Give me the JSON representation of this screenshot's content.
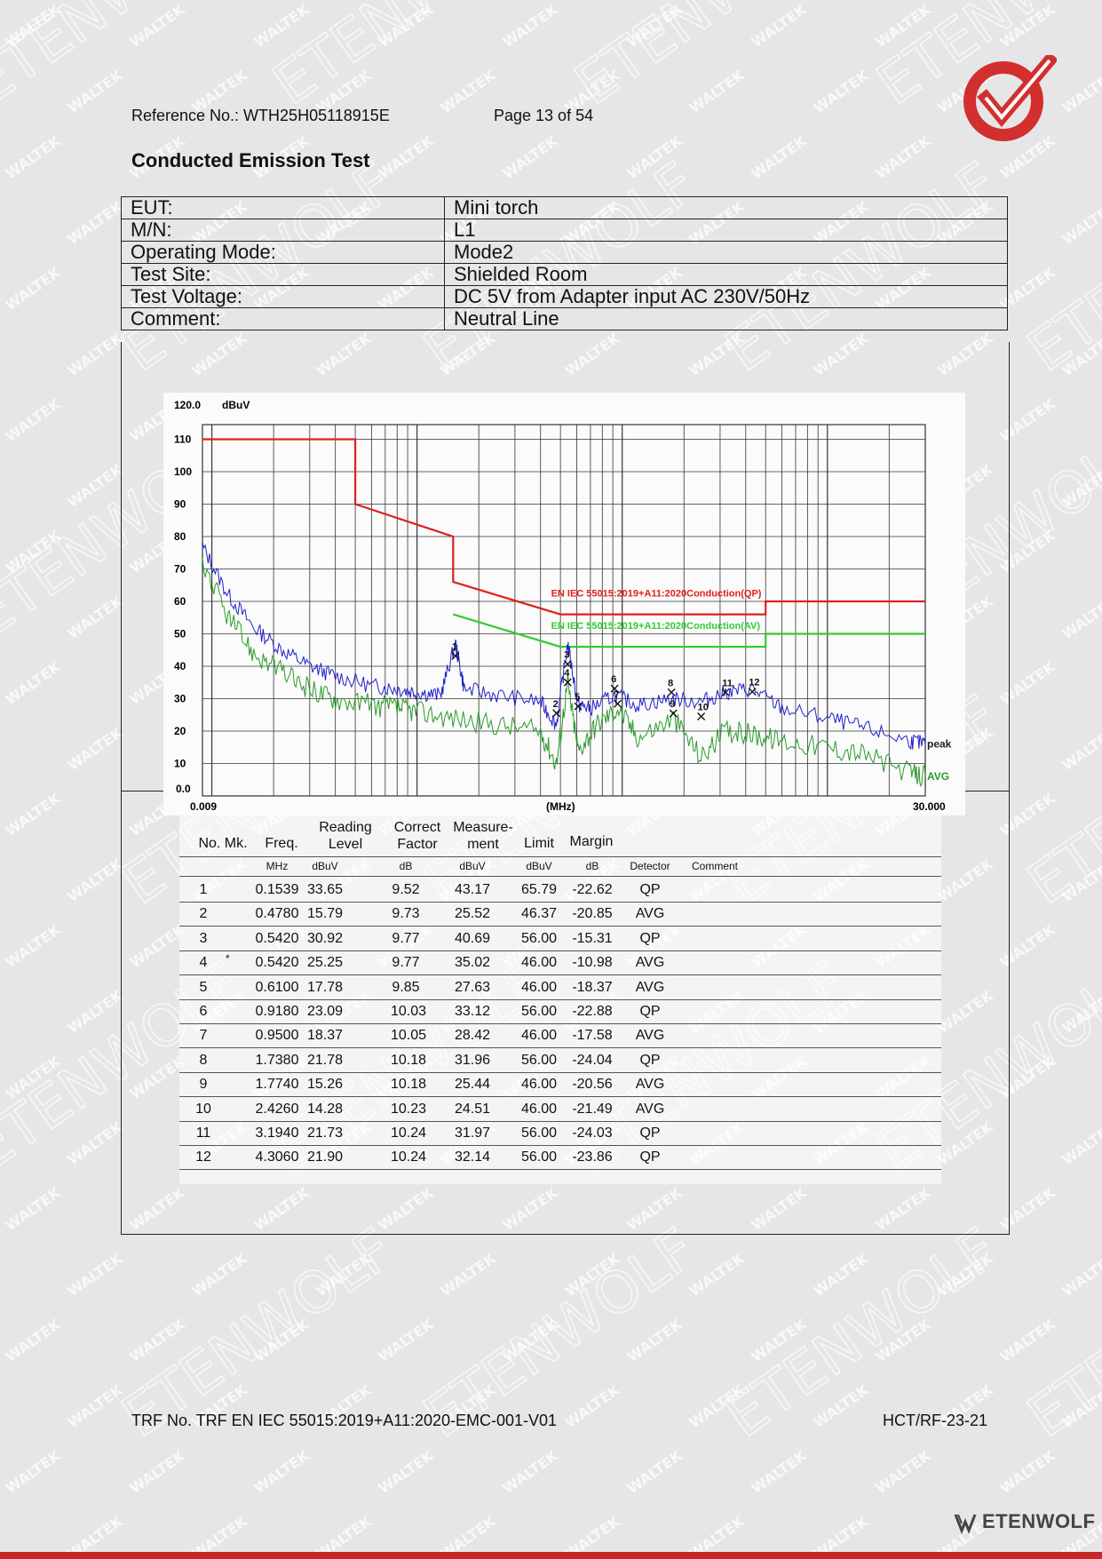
{
  "watermark": {
    "small": "WALTEK",
    "large": "ETENWOLF"
  },
  "header": {
    "reference": "Reference No.: WTH25H05118915E",
    "page": "Page 13 of 54",
    "title": "Conducted Emission Test"
  },
  "info_table": [
    {
      "key": "EUT:",
      "value": "Mini torch"
    },
    {
      "key": "M/N:",
      "value": "L1"
    },
    {
      "key": "Operating Mode:",
      "value": "Mode2"
    },
    {
      "key": "Test Site:",
      "value": "Shielded Room"
    },
    {
      "key": "Test Voltage:",
      "value": "DC 5V from Adapter input AC 230V/50Hz"
    },
    {
      "key": "Comment:",
      "value": "Neutral Line"
    }
  ],
  "chart_data": {
    "type": "line",
    "x_scale": "log",
    "xlim": [
      0.009,
      30.0
    ],
    "ylim": [
      0.0,
      120.0
    ],
    "yunit": "dBuV",
    "xunit": "(MHz)",
    "x_tick_left": "0.009",
    "x_tick_right": "30.000",
    "y_top_label": "120.0",
    "y_bottom_label": "0.0",
    "y_ticks": [
      10,
      20,
      30,
      40,
      50,
      60,
      70,
      80,
      90,
      100,
      110
    ],
    "limit_lines": [
      {
        "name": "EN IEC 55015:2019+A11:2020Conduction(QP)",
        "color": "#e02020",
        "points": [
          [
            0.009,
            110
          ],
          [
            0.05,
            110
          ],
          [
            0.05,
            90
          ],
          [
            0.15,
            80
          ],
          [
            0.15,
            66
          ],
          [
            0.5,
            56
          ],
          [
            5.0,
            56
          ],
          [
            5.0,
            60
          ],
          [
            30.0,
            60
          ]
        ]
      },
      {
        "name": "EN IEC 55015:2019+A11:2020Conduction(AV)",
        "color": "#33cc33",
        "points": [
          [
            0.15,
            56
          ],
          [
            0.5,
            46
          ],
          [
            5.0,
            46
          ],
          [
            5.0,
            50
          ],
          [
            30.0,
            50
          ]
        ]
      }
    ],
    "series": [
      {
        "name": "peak",
        "color": "#2020cc",
        "points": [
          [
            0.009,
            77
          ],
          [
            0.012,
            62
          ],
          [
            0.016,
            52
          ],
          [
            0.022,
            45
          ],
          [
            0.03,
            40
          ],
          [
            0.04,
            37
          ],
          [
            0.06,
            34
          ],
          [
            0.08,
            33
          ],
          [
            0.1,
            32
          ],
          [
            0.13,
            31
          ],
          [
            0.1539,
            47
          ],
          [
            0.17,
            33
          ],
          [
            0.25,
            31
          ],
          [
            0.4,
            29
          ],
          [
            0.478,
            22
          ],
          [
            0.542,
            47
          ],
          [
            0.61,
            28
          ],
          [
            0.7,
            27
          ],
          [
            0.918,
            31
          ],
          [
            1.2,
            28
          ],
          [
            1.738,
            30
          ],
          [
            2.426,
            29
          ],
          [
            3.194,
            32
          ],
          [
            4.306,
            33
          ],
          [
            6,
            27
          ],
          [
            10,
            24
          ],
          [
            15,
            21
          ],
          [
            25,
            17
          ],
          [
            30,
            16
          ]
        ]
      },
      {
        "name": "AVG",
        "color": "#2a9a2a",
        "points": [
          [
            0.009,
            72
          ],
          [
            0.012,
            55
          ],
          [
            0.016,
            44
          ],
          [
            0.022,
            38
          ],
          [
            0.03,
            33
          ],
          [
            0.04,
            30
          ],
          [
            0.06,
            28
          ],
          [
            0.08,
            27
          ],
          [
            0.1,
            26
          ],
          [
            0.15,
            24
          ],
          [
            0.25,
            22
          ],
          [
            0.4,
            20
          ],
          [
            0.478,
            10
          ],
          [
            0.542,
            35
          ],
          [
            0.61,
            14
          ],
          [
            0.75,
            22
          ],
          [
            0.95,
            27
          ],
          [
            1.2,
            18
          ],
          [
            1.774,
            24
          ],
          [
            2.426,
            12
          ],
          [
            3.194,
            20
          ],
          [
            4.306,
            19
          ],
          [
            6,
            17
          ],
          [
            10,
            15
          ],
          [
            15,
            13
          ],
          [
            25,
            7
          ],
          [
            30,
            6
          ]
        ]
      }
    ],
    "markers": [
      {
        "no": "1",
        "freq": 0.1539,
        "level": 43.17
      },
      {
        "no": "2",
        "freq": 0.478,
        "level": 25.52
      },
      {
        "no": "3",
        "freq": 0.542,
        "level": 40.69
      },
      {
        "no": "4",
        "freq": 0.542,
        "level": 35.02
      },
      {
        "no": "5",
        "freq": 0.61,
        "level": 27.63
      },
      {
        "no": "6",
        "freq": 0.918,
        "level": 33.12
      },
      {
        "no": "7",
        "freq": 0.95,
        "level": 28.42
      },
      {
        "no": "8",
        "freq": 1.738,
        "level": 31.96
      },
      {
        "no": "9",
        "freq": 1.774,
        "level": 25.44
      },
      {
        "no": "10",
        "freq": 2.426,
        "level": 24.51
      },
      {
        "no": "11",
        "freq": 3.194,
        "level": 31.97
      },
      {
        "no": "12",
        "freq": 4.306,
        "level": 32.14
      }
    ],
    "trace_labels": [
      "peak",
      "AVG"
    ]
  },
  "results_table": {
    "headers": [
      "No. Mk.",
      "Freq.",
      "Reading Level",
      "Correct Factor",
      "Measure- ment",
      "Limit",
      "Margin",
      "Detector",
      "Comment"
    ],
    "head_lines": {
      "no": "No. Mk.",
      "freq": "Freq.",
      "reading1": "Reading",
      "reading2": "Level",
      "correct1": "Correct",
      "correct2": "Factor",
      "measure1": "Measure-",
      "measure2": "ment",
      "limit": "Limit",
      "margin": "Margin"
    },
    "units": [
      "MHz",
      "dBuV",
      "dB",
      "dBuV",
      "dBuV",
      "dB",
      "Detector",
      "Comment"
    ],
    "rows": [
      {
        "no": "1",
        "mk": "",
        "freq": "0.1539",
        "reading": "33.65",
        "correct": "9.52",
        "measure": "43.17",
        "limit": "65.79",
        "margin": "-22.62",
        "detector": "QP"
      },
      {
        "no": "2",
        "mk": "",
        "freq": "0.4780",
        "reading": "15.79",
        "correct": "9.73",
        "measure": "25.52",
        "limit": "46.37",
        "margin": "-20.85",
        "detector": "AVG"
      },
      {
        "no": "3",
        "mk": "",
        "freq": "0.5420",
        "reading": "30.92",
        "correct": "9.77",
        "measure": "40.69",
        "limit": "56.00",
        "margin": "-15.31",
        "detector": "QP"
      },
      {
        "no": "4",
        "mk": "*",
        "freq": "0.5420",
        "reading": "25.25",
        "correct": "9.77",
        "measure": "35.02",
        "limit": "46.00",
        "margin": "-10.98",
        "detector": "AVG"
      },
      {
        "no": "5",
        "mk": "",
        "freq": "0.6100",
        "reading": "17.78",
        "correct": "9.85",
        "measure": "27.63",
        "limit": "46.00",
        "margin": "-18.37",
        "detector": "AVG"
      },
      {
        "no": "6",
        "mk": "",
        "freq": "0.9180",
        "reading": "23.09",
        "correct": "10.03",
        "measure": "33.12",
        "limit": "56.00",
        "margin": "-22.88",
        "detector": "QP"
      },
      {
        "no": "7",
        "mk": "",
        "freq": "0.9500",
        "reading": "18.37",
        "correct": "10.05",
        "measure": "28.42",
        "limit": "46.00",
        "margin": "-17.58",
        "detector": "AVG"
      },
      {
        "no": "8",
        "mk": "",
        "freq": "1.7380",
        "reading": "21.78",
        "correct": "10.18",
        "measure": "31.96",
        "limit": "56.00",
        "margin": "-24.04",
        "detector": "QP"
      },
      {
        "no": "9",
        "mk": "",
        "freq": "1.7740",
        "reading": "15.26",
        "correct": "10.18",
        "measure": "25.44",
        "limit": "46.00",
        "margin": "-20.56",
        "detector": "AVG"
      },
      {
        "no": "10",
        "mk": "",
        "freq": "2.4260",
        "reading": "14.28",
        "correct": "10.23",
        "measure": "24.51",
        "limit": "46.00",
        "margin": "-21.49",
        "detector": "AVG"
      },
      {
        "no": "11",
        "mk": "",
        "freq": "3.1940",
        "reading": "21.73",
        "correct": "10.24",
        "measure": "31.97",
        "limit": "56.00",
        "margin": "-24.03",
        "detector": "QP"
      },
      {
        "no": "12",
        "mk": "",
        "freq": "4.3060",
        "reading": "21.90",
        "correct": "10.24",
        "measure": "32.14",
        "limit": "56.00",
        "margin": "-23.86",
        "detector": "QP"
      }
    ]
  },
  "footer": {
    "trf": "TRF No. TRF EN IEC 55015:2019+A11:2020-EMC-001-V01",
    "code": "HCT/RF-23-21",
    "brand": "ETENWOLF"
  },
  "colors": {
    "brand_red": "#d32f2f",
    "limit_qp": "#e02020",
    "limit_av": "#33cc33",
    "peak": "#2020cc",
    "avg": "#2a9a2a"
  }
}
